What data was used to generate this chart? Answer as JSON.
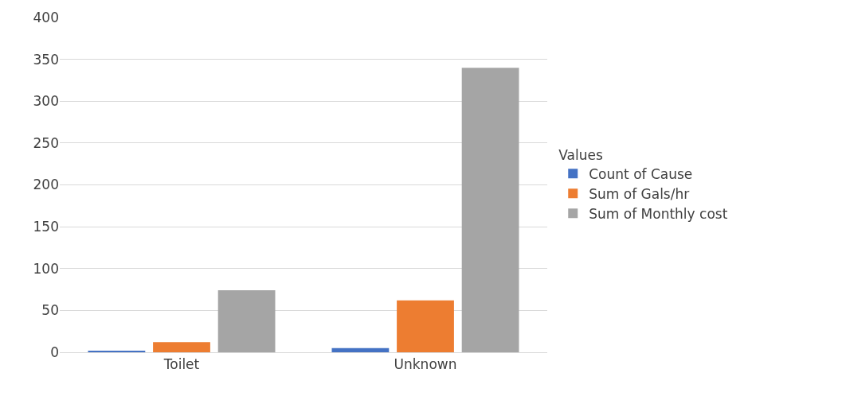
{
  "chart_data": {
    "type": "bar",
    "categories": [
      "Toilet",
      "Unknown"
    ],
    "series": [
      {
        "name": "Count of Cause",
        "color": "#4472c4",
        "values": [
          1,
          5
        ]
      },
      {
        "name": "Sum of Gals/hr",
        "color": "#ed7d31",
        "values": [
          12,
          62
        ]
      },
      {
        "name": "Sum of Monthly cost",
        "color": "#a5a5a5",
        "values": [
          74,
          340
        ]
      }
    ],
    "ylim": [
      0,
      400
    ],
    "yticks": [
      0,
      50,
      100,
      150,
      200,
      250,
      300,
      350,
      400
    ],
    "grid": "y",
    "legend": "right",
    "legend_title": "Values"
  }
}
